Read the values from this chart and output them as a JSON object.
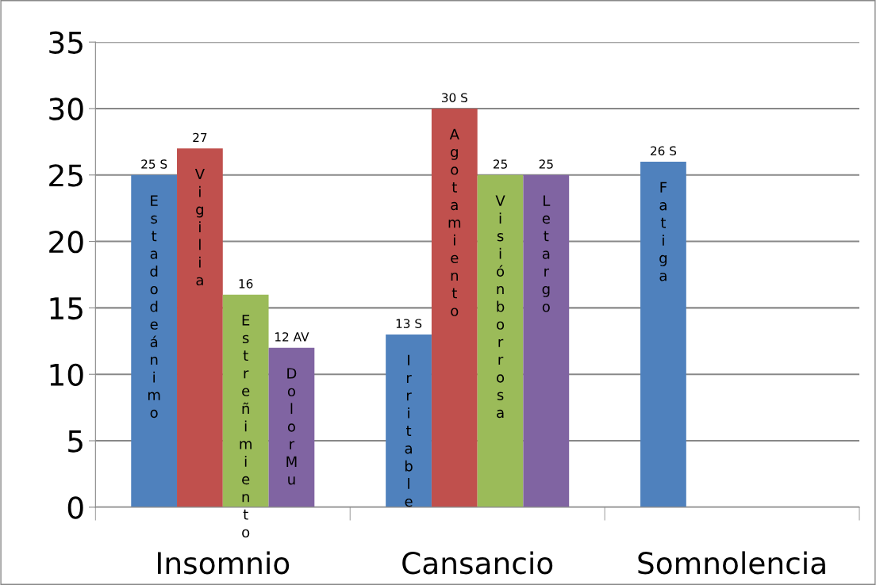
{
  "chart_data": {
    "type": "bar",
    "categories": [
      "Insomnio",
      "Cansancio",
      "Somnolencia"
    ],
    "series": [
      {
        "color": "#4f81bd",
        "values": [
          25,
          13,
          26
        ],
        "value_labels": [
          "25 S",
          "13 S",
          "26 S"
        ]
      },
      {
        "color": "#c0504d",
        "values": [
          27,
          30,
          null
        ],
        "value_labels": [
          "27",
          "30 S",
          null
        ]
      },
      {
        "color": "#9bbb59",
        "values": [
          16,
          25,
          null
        ],
        "value_labels": [
          "16",
          "25",
          null
        ]
      },
      {
        "color": "#8064a2",
        "values": [
          12,
          25,
          null
        ],
        "value_labels": [
          "12 AV",
          "25",
          null
        ]
      }
    ],
    "annotations": [
      "Estadodeánimo",
      "Vigilia",
      "Estreñimiento",
      "DolorMu",
      "Irritable",
      "Agotamiento",
      "Visiónborrosa",
      "Letargo",
      "Fatiga"
    ],
    "ylim": [
      0,
      35
    ],
    "yticks": [
      0,
      5,
      10,
      15,
      20,
      25,
      30,
      35
    ],
    "grid": "y"
  }
}
